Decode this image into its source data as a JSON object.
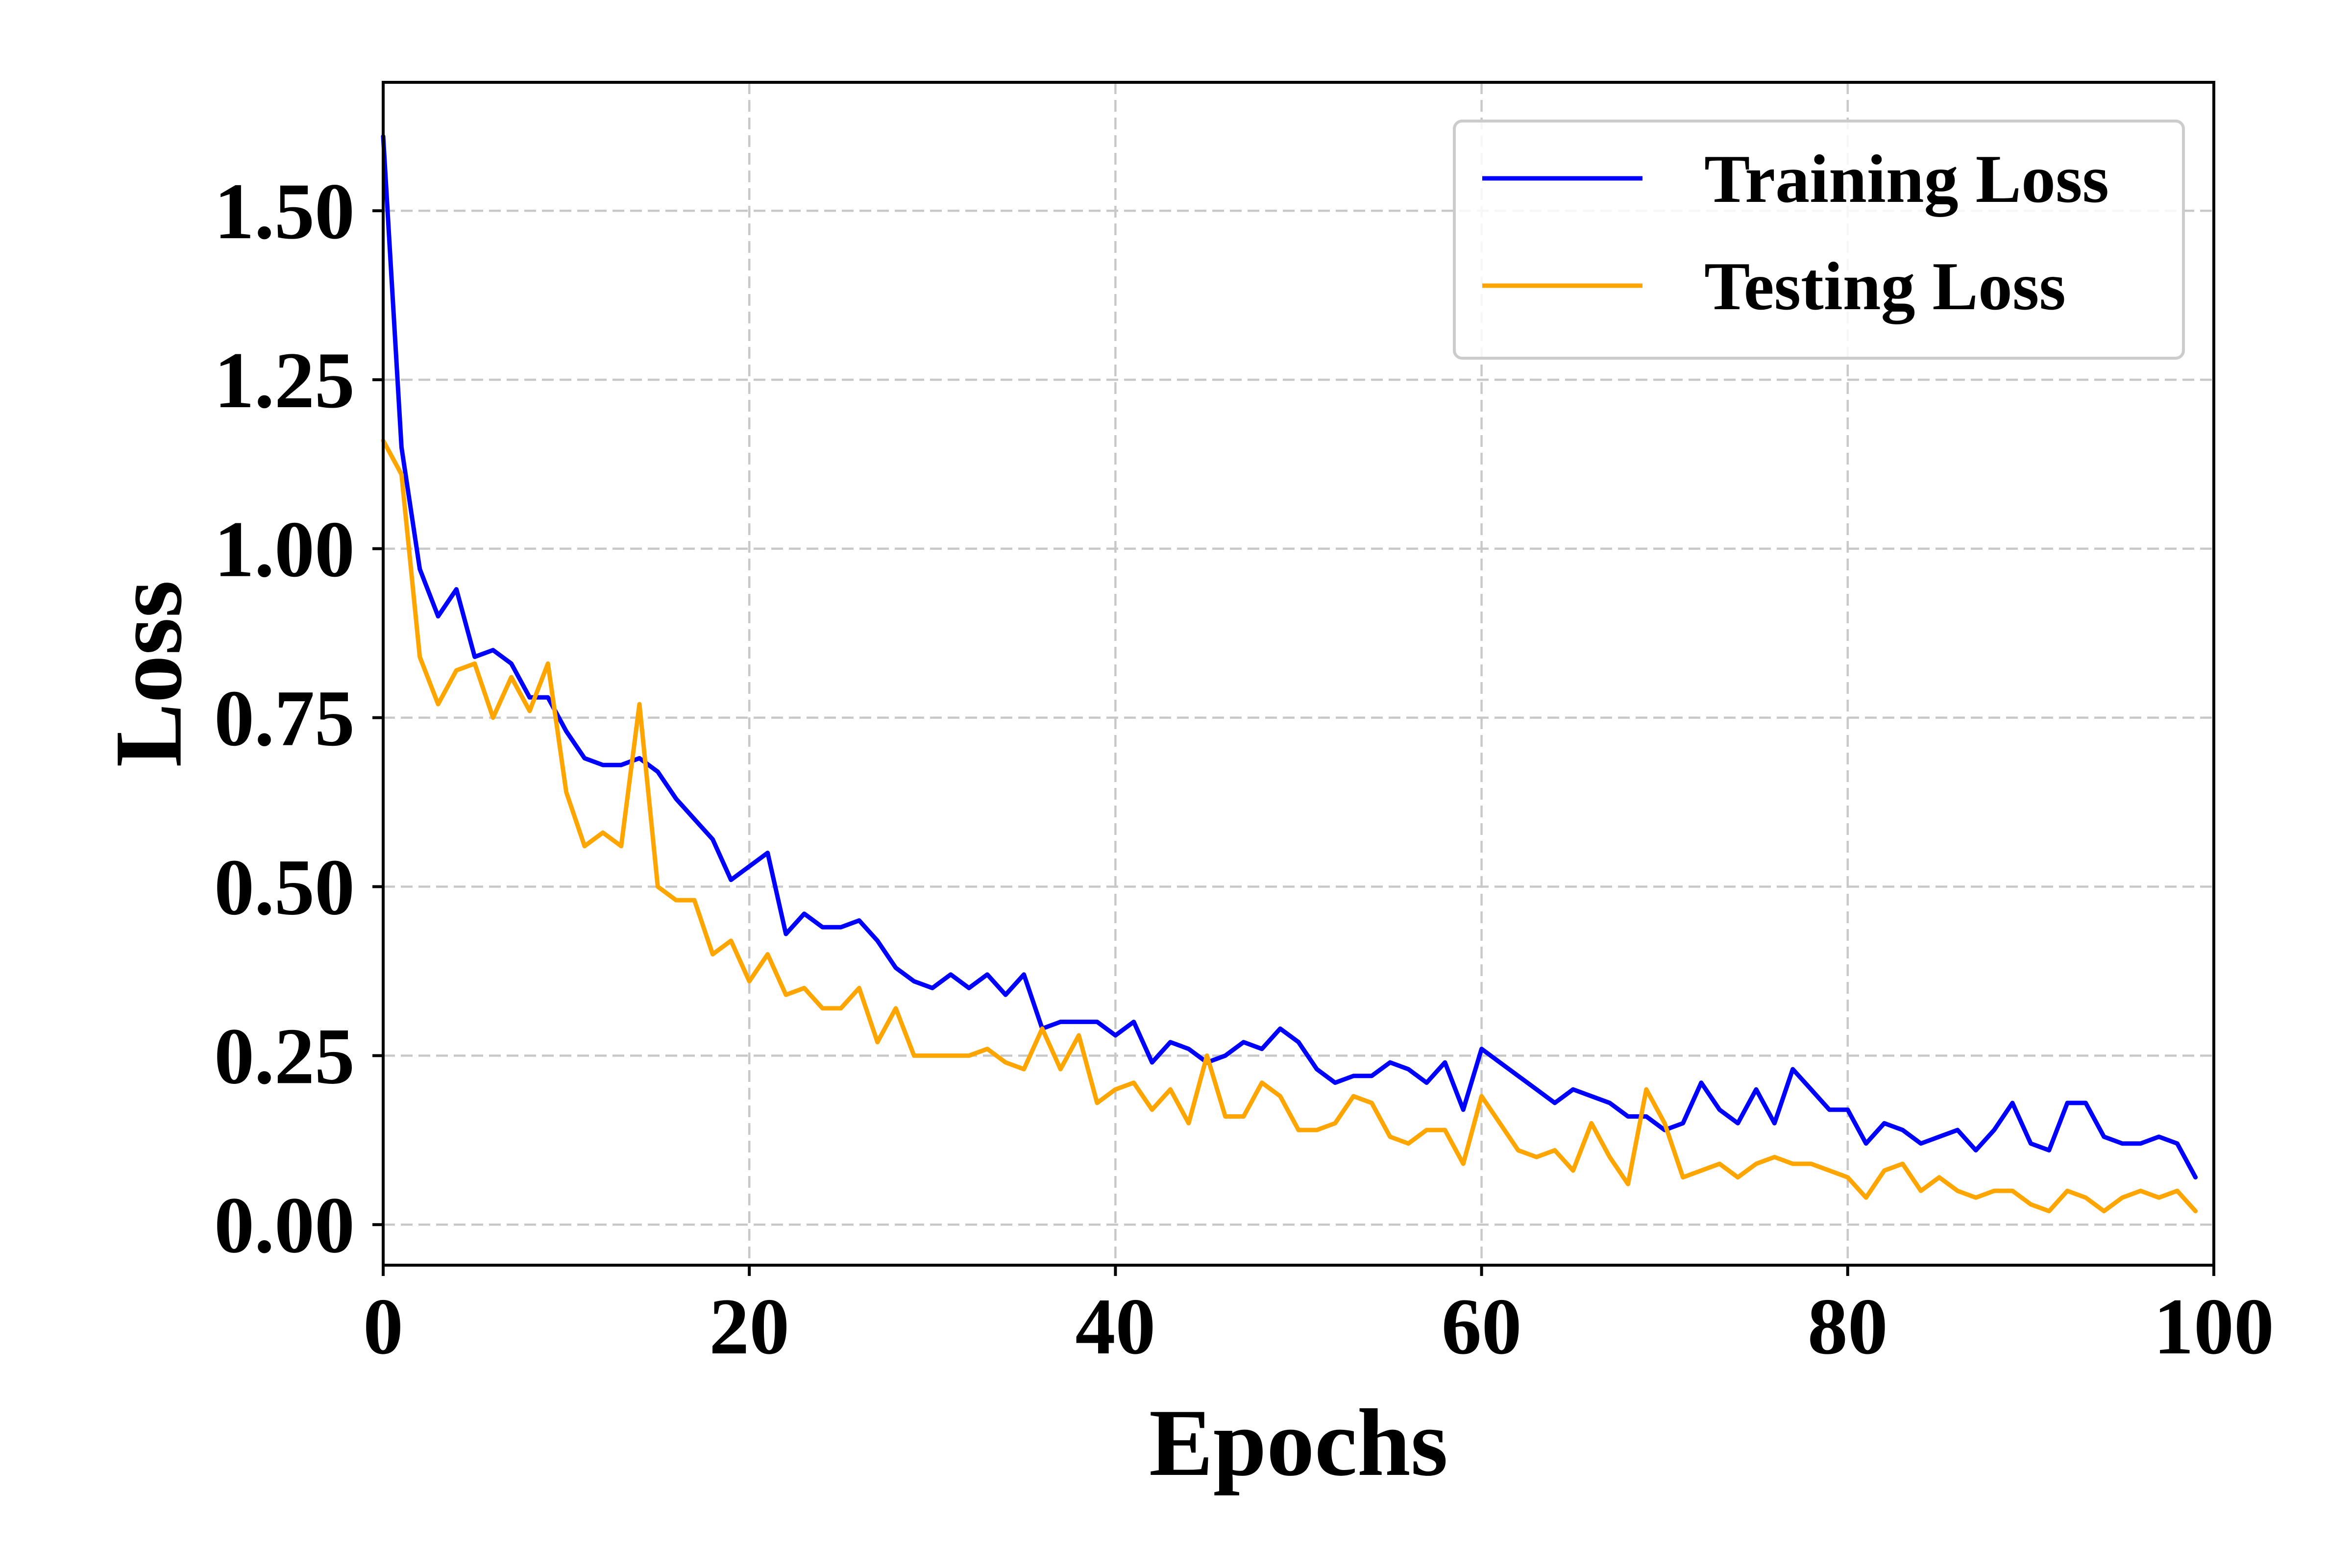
{
  "chart_data": {
    "type": "line",
    "xlabel": "Epochs",
    "ylabel": "Loss",
    "xlim": [
      0,
      100
    ],
    "ylim": [
      -0.06,
      1.69
    ],
    "x_ticks": [
      0,
      20,
      40,
      60,
      80,
      100
    ],
    "x_tick_labels": [
      "0",
      "20",
      "40",
      "60",
      "80",
      "100"
    ],
    "y_ticks": [
      0.0,
      0.25,
      0.5,
      0.75,
      1.0,
      1.25,
      1.5
    ],
    "y_tick_labels": [
      "0.00",
      "0.25",
      "0.50",
      "0.75",
      "1.00",
      "1.25",
      "1.50"
    ],
    "grid": true,
    "legend_position": "top-right",
    "series": [
      {
        "name": "Training Loss",
        "color": "#0000ff",
        "x": [
          0,
          1,
          2,
          3,
          4,
          5,
          6,
          7,
          8,
          9,
          10,
          11,
          12,
          13,
          14,
          15,
          16,
          17,
          18,
          19,
          20,
          21,
          22,
          23,
          24,
          25,
          26,
          27,
          28,
          29,
          30,
          31,
          32,
          33,
          34,
          35,
          36,
          37,
          38,
          39,
          40,
          41,
          42,
          43,
          44,
          45,
          46,
          47,
          48,
          49,
          50,
          51,
          52,
          53,
          54,
          55,
          56,
          57,
          58,
          59,
          60,
          61,
          62,
          63,
          64,
          65,
          66,
          67,
          68,
          69,
          70,
          71,
          72,
          73,
          74,
          75,
          76,
          77,
          78,
          79,
          80,
          81,
          82,
          83,
          84,
          85,
          86,
          87,
          88,
          89,
          90,
          91,
          92,
          93,
          94,
          95,
          96,
          97,
          98,
          99
        ],
        "values": [
          1.61,
          1.15,
          0.97,
          0.9,
          0.94,
          0.84,
          0.85,
          0.83,
          0.78,
          0.78,
          0.73,
          0.69,
          0.68,
          0.68,
          0.69,
          0.67,
          0.63,
          0.6,
          0.57,
          0.51,
          0.53,
          0.55,
          0.43,
          0.46,
          0.44,
          0.44,
          0.45,
          0.42,
          0.38,
          0.36,
          0.35,
          0.37,
          0.35,
          0.37,
          0.34,
          0.37,
          0.29,
          0.3,
          0.3,
          0.3,
          0.28,
          0.3,
          0.24,
          0.27,
          0.26,
          0.24,
          0.25,
          0.27,
          0.26,
          0.29,
          0.27,
          0.23,
          0.21,
          0.22,
          0.22,
          0.24,
          0.23,
          0.21,
          0.24,
          0.17,
          0.26,
          0.24,
          0.22,
          0.2,
          0.18,
          0.2,
          0.19,
          0.18,
          0.16,
          0.16,
          0.14,
          0.15,
          0.21,
          0.17,
          0.15,
          0.2,
          0.15,
          0.23,
          0.2,
          0.17,
          0.17,
          0.12,
          0.15,
          0.14,
          0.12,
          0.13,
          0.14,
          0.11,
          0.14,
          0.18,
          0.12,
          0.11,
          0.18,
          0.18,
          0.13,
          0.12,
          0.12,
          0.13,
          0.12,
          0.07
        ]
      },
      {
        "name": "Testing Loss",
        "color": "#ffa500",
        "x": [
          0,
          1,
          2,
          3,
          4,
          5,
          6,
          7,
          8,
          9,
          10,
          11,
          12,
          13,
          14,
          15,
          16,
          17,
          18,
          19,
          20,
          21,
          22,
          23,
          24,
          25,
          26,
          27,
          28,
          29,
          30,
          31,
          32,
          33,
          34,
          35,
          36,
          37,
          38,
          39,
          40,
          41,
          42,
          43,
          44,
          45,
          46,
          47,
          48,
          49,
          50,
          51,
          52,
          53,
          54,
          55,
          56,
          57,
          58,
          59,
          60,
          61,
          62,
          63,
          64,
          65,
          66,
          67,
          68,
          69,
          70,
          71,
          72,
          73,
          74,
          75,
          76,
          77,
          78,
          79,
          80,
          81,
          82,
          83,
          84,
          85,
          86,
          87,
          88,
          89,
          90,
          91,
          92,
          93,
          94,
          95,
          96,
          97,
          98,
          99
        ],
        "values": [
          1.16,
          1.11,
          0.84,
          0.77,
          0.82,
          0.83,
          0.75,
          0.81,
          0.76,
          0.83,
          0.64,
          0.56,
          0.58,
          0.56,
          0.77,
          0.5,
          0.48,
          0.48,
          0.4,
          0.42,
          0.36,
          0.4,
          0.34,
          0.35,
          0.32,
          0.32,
          0.35,
          0.27,
          0.32,
          0.25,
          0.25,
          0.25,
          0.25,
          0.26,
          0.24,
          0.23,
          0.29,
          0.23,
          0.28,
          0.18,
          0.2,
          0.21,
          0.17,
          0.2,
          0.15,
          0.25,
          0.16,
          0.16,
          0.21,
          0.19,
          0.14,
          0.14,
          0.15,
          0.19,
          0.18,
          0.13,
          0.12,
          0.14,
          0.14,
          0.09,
          0.19,
          0.15,
          0.11,
          0.1,
          0.11,
          0.08,
          0.15,
          0.1,
          0.06,
          0.2,
          0.15,
          0.07,
          0.08,
          0.09,
          0.07,
          0.09,
          0.1,
          0.09,
          0.09,
          0.08,
          0.07,
          0.04,
          0.08,
          0.09,
          0.05,
          0.07,
          0.05,
          0.04,
          0.05,
          0.05,
          0.03,
          0.02,
          0.05,
          0.04,
          0.02,
          0.04,
          0.05,
          0.04,
          0.05,
          0.02
        ]
      }
    ]
  }
}
